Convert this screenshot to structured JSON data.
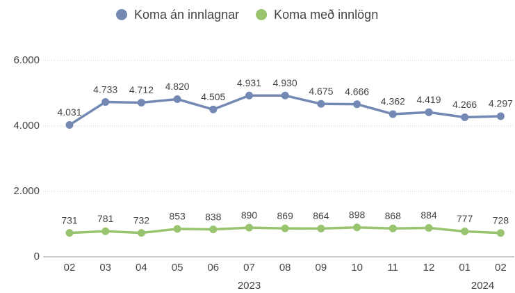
{
  "chart_data": {
    "type": "line",
    "categories": [
      "02",
      "03",
      "04",
      "05",
      "06",
      "07",
      "08",
      "09",
      "10",
      "11",
      "12",
      "01",
      "02"
    ],
    "category_groups": [
      {
        "label": "2023",
        "start": 0,
        "end": 10
      },
      {
        "label": "2024",
        "start": 11,
        "end": 12
      }
    ],
    "series": [
      {
        "name": "Koma án innlagnar",
        "color": "#7389b4",
        "values": [
          4031,
          4733,
          4712,
          4820,
          4505,
          4931,
          4930,
          4675,
          4666,
          4362,
          4419,
          4266,
          4297
        ],
        "value_labels": [
          "4.031",
          "4.733",
          "4.712",
          "4.820",
          "4.505",
          "4.931",
          "4.930",
          "4.675",
          "4.666",
          "4.362",
          "4.419",
          "4.266",
          "4.297"
        ]
      },
      {
        "name": "Koma með innlögn",
        "color": "#99c46f",
        "values": [
          731,
          781,
          732,
          853,
          838,
          890,
          869,
          864,
          898,
          868,
          884,
          777,
          728
        ]
      }
    ],
    "ylim": [
      0,
      6000
    ],
    "yticks": [
      0,
      {
        "value": 2000,
        "label": "2.000"
      },
      {
        "value": 4000,
        "label": "4.000"
      },
      {
        "value": 6000,
        "label": "6.000"
      }
    ],
    "grid": true,
    "legend": "top"
  }
}
